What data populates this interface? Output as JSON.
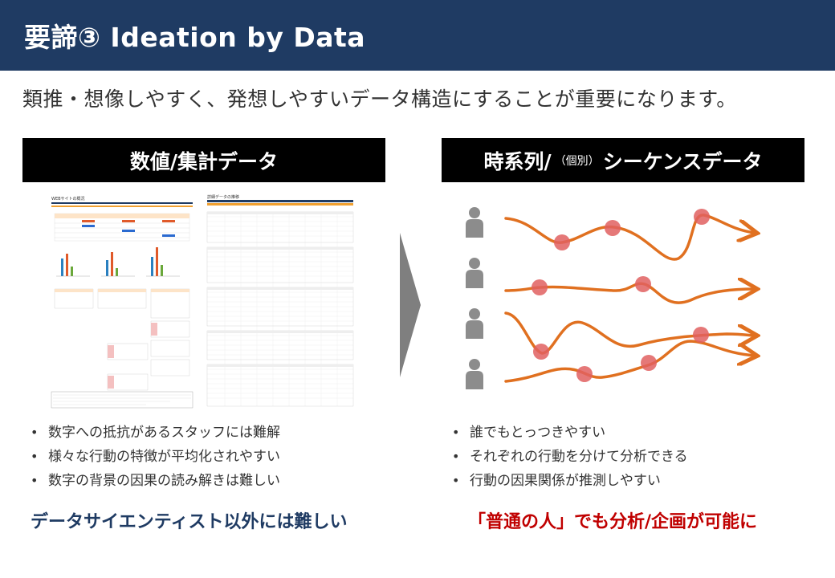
{
  "header": {
    "title": "要諦③ Ideation by Data"
  },
  "subtitle": "類推・想像しやすく、発想しやすいデータ構造にすることが重要になります。",
  "left_panel": {
    "heading": "数値/集計データ",
    "sheet1_title": "WEBサイトの概況",
    "sheet2_title": "詳細データの推移",
    "bullets": [
      "数字への抵抗があるスタッフには難解",
      "様々な行動の特徴が平均化されやすい",
      "数字の背景の因果の読み解きは難しい"
    ],
    "conclusion": "データサイエンティスト以外には難しい"
  },
  "right_panel": {
    "heading_main": "時系列/",
    "heading_small": "（個別）",
    "heading_tail": "シーケンスデータ",
    "bullets": [
      "誰でもとっつきやすい",
      "それぞれの行動を分けて分析できる",
      "行動の因果関係が推測しやすい"
    ],
    "conclusion": "「普通の人」でも分析/企画が可能に"
  },
  "colors": {
    "header_bg": "#1f3b63",
    "line_orange": "#e07020",
    "dot_red": "#e06060",
    "person_gray": "#8c8c8c",
    "conclusion_left": "#1f3b63",
    "conclusion_right": "#c00000"
  },
  "icons": [
    "person-icon",
    "right-arrow-icon"
  ]
}
